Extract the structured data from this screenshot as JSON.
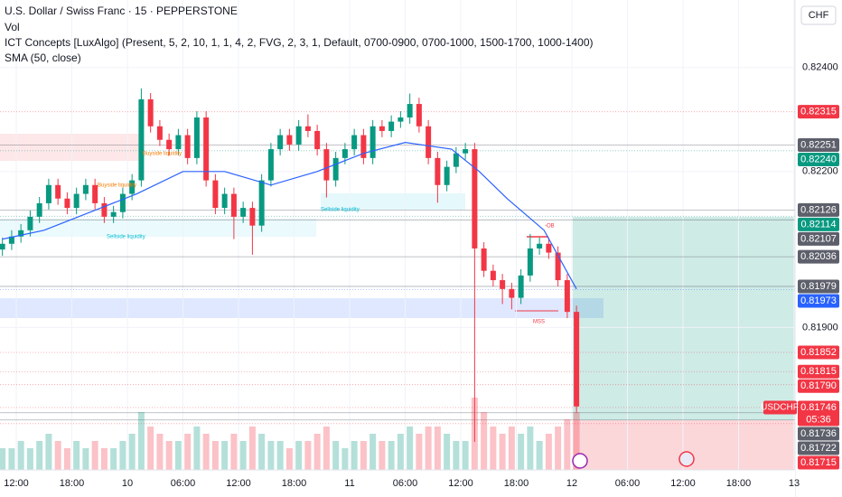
{
  "chart_data": {
    "type": "candlestick",
    "title": "U.S. Dollar / Swiss Franc · 15 · PEPPERSTONE",
    "indicators": [
      "Vol",
      "ICT Concepts [LuxAlgo] (Present, 5, 2, 10, 1, 1, 4, 2, FVG, 2, 3, 1, Default, 0700-0900, 0700-1000, 1500-1700, 1000-1400)",
      "SMA (50, close)"
    ],
    "currency": "CHF",
    "xlim": [
      -1.76,
      84.1
    ],
    "ylim": [
      0.81626,
      0.8253
    ],
    "xticks": [
      {
        "value": 0,
        "label": "12:00"
      },
      {
        "value": 6,
        "label": "18:00"
      },
      {
        "value": 12,
        "label": "10"
      },
      {
        "value": 18,
        "label": "06:00"
      },
      {
        "value": 24,
        "label": "12:00"
      },
      {
        "value": 30,
        "label": "18:00"
      },
      {
        "value": 36,
        "label": "11"
      },
      {
        "value": 42,
        "label": "06:00"
      },
      {
        "value": 48,
        "label": "12:00"
      },
      {
        "value": 54,
        "label": "18:00"
      },
      {
        "value": 60,
        "label": "12"
      },
      {
        "value": 66,
        "label": "06:00"
      },
      {
        "value": 72,
        "label": "12:00"
      },
      {
        "value": 78,
        "label": "18:00"
      },
      {
        "value": 84,
        "label": "13"
      }
    ],
    "yticks": [
      {
        "value": 0.824,
        "label": "0.82400"
      },
      {
        "value": 0.822,
        "label": "0.82200"
      },
      {
        "value": 0.819,
        "label": "0.81900"
      }
    ],
    "up_color": "#089981",
    "down_color": "#f23645",
    "x": [
      -1.5,
      -0.5,
      0.5,
      1.5,
      2.5,
      3.5,
      4.5,
      5.5,
      6.5,
      7.5,
      8.5,
      9.5,
      10.5,
      11.5,
      12.5,
      13.5,
      14.5,
      15.5,
      16.5,
      17.5,
      18.5,
      19.5,
      20.5,
      21.5,
      22.5,
      23.5,
      24.5,
      25.5,
      26.5,
      27.5,
      28.5,
      29.5,
      30.5,
      31.5,
      32.5,
      33.5,
      34.5,
      35.5,
      36.5,
      37.5,
      38.5,
      39.5,
      40.5,
      41.5,
      42.5,
      43.5,
      44.5,
      45.5,
      46.5,
      47.5,
      48.5,
      49.5,
      50.5,
      51.5,
      52.5,
      53.5,
      54.5,
      55.5,
      56.5,
      57.5,
      58.5,
      59.5,
      60.5
    ],
    "open": [
      0.8205,
      0.82061,
      0.82075,
      0.82087,
      0.82113,
      0.82139,
      0.82174,
      0.82148,
      0.8213,
      0.82157,
      0.82174,
      0.82139,
      0.82113,
      0.82122,
      0.82157,
      0.82183,
      0.82339,
      0.82287,
      0.82261,
      0.82243,
      0.8227,
      0.82226,
      0.82304,
      0.82183,
      0.8213,
      0.82157,
      0.82113,
      0.8213,
      0.82096,
      0.82183,
      0.82243,
      0.8227,
      0.82252,
      0.82287,
      0.82278,
      0.82243,
      0.82183,
      0.82226,
      0.82243,
      0.8227,
      0.82226,
      0.82287,
      0.82278,
      0.82296,
      0.82304,
      0.8233,
      0.82287,
      0.82226,
      0.82174,
      0.82209,
      0.82235,
      0.82243,
      0.82052,
      0.82009,
      0.81991,
      0.81974,
      0.81957,
      0.82,
      0.82052,
      0.82061,
      0.82044,
      0.81991,
      0.8193
    ],
    "high": [
      0.82073,
      0.82087,
      0.82099,
      0.82125,
      0.82151,
      0.82186,
      0.82186,
      0.8216,
      0.82169,
      0.82186,
      0.82186,
      0.82151,
      0.82134,
      0.82169,
      0.82195,
      0.8236,
      0.82351,
      0.82299,
      0.82273,
      0.82282,
      0.82282,
      0.82316,
      0.82316,
      0.82195,
      0.82169,
      0.82169,
      0.82142,
      0.82142,
      0.82195,
      0.82255,
      0.82282,
      0.82282,
      0.82299,
      0.8231,
      0.8229,
      0.82255,
      0.82238,
      0.82255,
      0.82282,
      0.82282,
      0.82299,
      0.82299,
      0.82308,
      0.82316,
      0.8235,
      0.82342,
      0.82299,
      0.82238,
      0.82221,
      0.82247,
      0.82255,
      0.82255,
      0.82064,
      0.82021,
      0.82003,
      0.81986,
      0.82012,
      0.8208,
      0.82073,
      0.82073,
      0.82056,
      0.82003,
      0.81942
    ],
    "low": [
      0.82038,
      0.82049,
      0.82063,
      0.82075,
      0.82101,
      0.82127,
      0.82136,
      0.82118,
      0.82118,
      0.82145,
      0.82127,
      0.82101,
      0.82101,
      0.8211,
      0.82145,
      0.82171,
      0.82275,
      0.82249,
      0.82231,
      0.82231,
      0.82214,
      0.82214,
      0.82171,
      0.82118,
      0.82118,
      0.8207,
      0.82101,
      0.8204,
      0.82084,
      0.82171,
      0.82231,
      0.8224,
      0.8224,
      0.82266,
      0.82231,
      0.8215,
      0.82171,
      0.82214,
      0.82231,
      0.82214,
      0.82214,
      0.82266,
      0.82266,
      0.82284,
      0.82292,
      0.82275,
      0.82214,
      0.8214,
      0.82162,
      0.82197,
      0.82223,
      0.8168,
      0.81997,
      0.81979,
      0.81945,
      0.81935,
      0.81945,
      0.81988,
      0.8204,
      0.82032,
      0.81979,
      0.81918,
      0.81736
    ],
    "close": [
      0.82061,
      0.82075,
      0.82087,
      0.82113,
      0.82139,
      0.82174,
      0.82148,
      0.8213,
      0.82157,
      0.82174,
      0.82139,
      0.82113,
      0.82122,
      0.82157,
      0.82183,
      0.82339,
      0.82287,
      0.82261,
      0.82243,
      0.8227,
      0.82226,
      0.82304,
      0.82183,
      0.8213,
      0.82157,
      0.82113,
      0.8213,
      0.82096,
      0.82183,
      0.82243,
      0.8227,
      0.82252,
      0.82287,
      0.82278,
      0.82243,
      0.82183,
      0.82226,
      0.82243,
      0.8227,
      0.82226,
      0.82287,
      0.82278,
      0.82296,
      0.82304,
      0.8233,
      0.82287,
      0.82226,
      0.82174,
      0.82209,
      0.82235,
      0.82243,
      0.82052,
      0.82009,
      0.81991,
      0.81974,
      0.81957,
      0.82,
      0.82052,
      0.82061,
      0.82044,
      0.81991,
      0.8193,
      0.81748
    ],
    "volume": [
      3,
      3,
      4,
      3,
      4,
      5,
      4,
      3,
      4,
      3,
      4,
      3,
      3,
      4,
      5,
      8,
      6,
      5,
      4,
      4,
      5,
      6,
      5,
      4,
      4,
      5,
      4,
      6,
      5,
      4,
      4,
      3,
      4,
      4,
      5,
      6,
      4,
      3,
      4,
      4,
      5,
      4,
      4,
      5,
      6,
      5,
      6,
      6,
      5,
      4,
      4,
      10,
      8,
      6,
      5,
      6,
      5,
      6,
      4,
      5,
      6,
      7,
      8
    ],
    "sma": {
      "color": "#2962ff",
      "x": [
        -1.5,
        3,
        8,
        13,
        18,
        22.5,
        27.5,
        32.5,
        37.5,
        42,
        47,
        50,
        53,
        57,
        60.5
      ],
      "values": [
        0.8207,
        0.82087,
        0.82122,
        0.82157,
        0.822,
        0.822,
        0.82174,
        0.822,
        0.82235,
        0.82256,
        0.82243,
        0.822,
        0.82148,
        0.82087,
        0.81974
      ]
    },
    "price_tags": [
      {
        "value": 0.82315,
        "label": "0.82315",
        "color": "#f23645"
      },
      {
        "value": 0.82251,
        "label": "0.82251",
        "color": "#5d606b"
      },
      {
        "value": 0.8224,
        "label": "0.82240",
        "color": "#089981"
      },
      {
        "value": 0.82126,
        "label": "0.82126",
        "color": "#5d606b"
      },
      {
        "value": 0.82114,
        "label": "0.82114",
        "color": "#089981"
      },
      {
        "value": 0.82107,
        "label": "0.82107",
        "color": "#5d606b"
      },
      {
        "value": 0.82036,
        "label": "0.82036",
        "color": "#5d606b"
      },
      {
        "value": 0.81979,
        "label": "0.81979",
        "color": "#5d606b"
      },
      {
        "value": 0.81973,
        "label": "0.81973",
        "color": "#2962ff"
      },
      {
        "value": 0.81852,
        "label": "0.81852",
        "color": "#f23645"
      },
      {
        "value": 0.81815,
        "label": "0.81815",
        "color": "#f23645"
      },
      {
        "value": 0.8179,
        "label": "0.81790",
        "color": "#f23645"
      },
      {
        "value": 0.81746,
        "label": "0.81746",
        "color": "#f23645",
        "symbol": "USDCHF",
        "countdown": "05:36"
      },
      {
        "value": 0.81736,
        "label": "0.81736",
        "color": "#5d606b"
      },
      {
        "value": 0.81722,
        "label": "0.81722",
        "color": "#5d606b"
      },
      {
        "value": 0.81715,
        "label": "0.81715",
        "color": "#f23645"
      }
    ],
    "annotations": [
      "Buyside liquidity",
      "Buyside liquidity",
      "Sellside liquidity",
      "Sellside liquidity",
      "-OB",
      "MSS"
    ]
  }
}
